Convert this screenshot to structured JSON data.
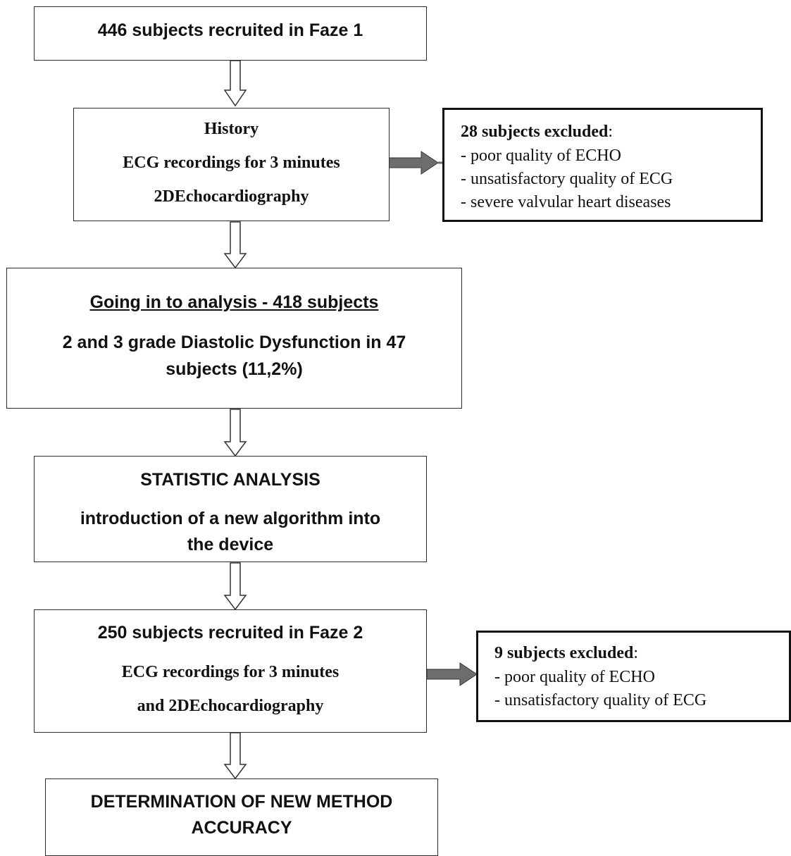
{
  "box1": {
    "text": "446 subjects recruited in Faze 1"
  },
  "box2": {
    "lines": [
      "History",
      "ECG recordings for 3 minutes",
      "2DEchocardiography"
    ]
  },
  "excluded1": {
    "title": "28 subjects excluded",
    "colon": ":",
    "items": [
      "- poor quality of ECHO",
      "- unsatisfactory quality of ECG",
      "- severe valvular heart diseases"
    ]
  },
  "box3": {
    "heading": "Going in to analysis - 418 subjects",
    "line1": "2 and 3 grade Diastolic Dysfunction in  47",
    "line2": "subjects (11,2%)"
  },
  "box4": {
    "heading": "STATISTIC ANALYSIS",
    "line1": "introduction of a new algorithm into",
    "line2": "the device"
  },
  "box5": {
    "heading": "250 subjects recruited in Faze 2",
    "line1": "ECG recordings for 3 minutes",
    "line2": "and 2DEchocardiography"
  },
  "excluded2": {
    "title": "9 subjects excluded",
    "colon": ":",
    "items": [
      "- poor quality of ECHO",
      "- unsatisfactory quality of ECG"
    ]
  },
  "box6": {
    "line1": "DETERMINATION OF NEW METHOD",
    "line2": "ACCURACY"
  }
}
